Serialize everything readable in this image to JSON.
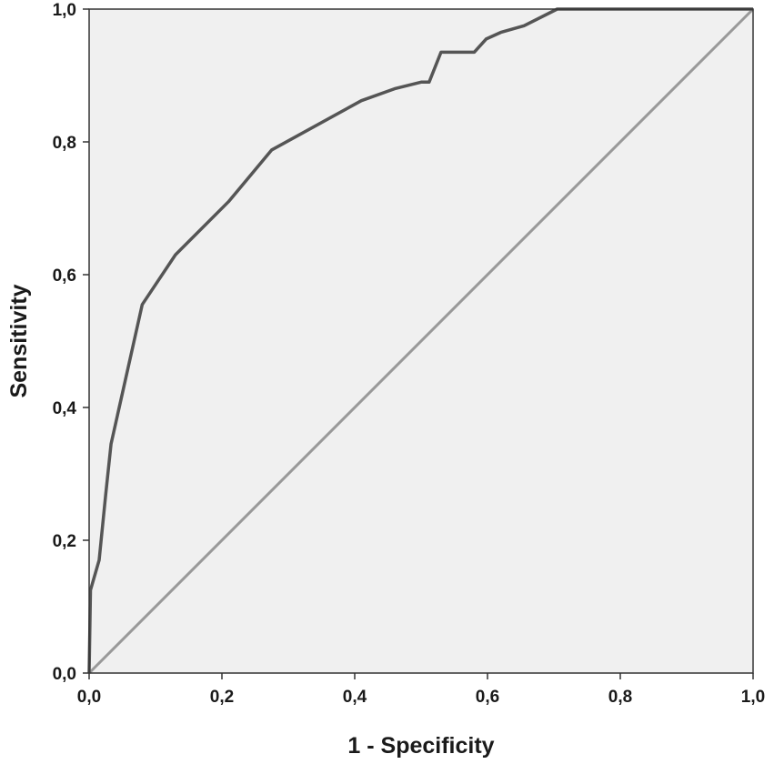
{
  "chart_data": {
    "type": "line",
    "title": "",
    "xlabel": "1 - Specificity",
    "ylabel": "Sensitivity",
    "xlim": [
      0,
      1
    ],
    "ylim": [
      0,
      1
    ],
    "xticks": [
      "0,0",
      "0,2",
      "0,4",
      "0,6",
      "0,8",
      "1,0"
    ],
    "yticks": [
      "0,0",
      "0,2",
      "0,4",
      "0,6",
      "0,8",
      "1,0"
    ],
    "grid": false,
    "colors": {
      "plot_background": "#f0f0f0",
      "curve": "#555555",
      "reference_line": "#999999",
      "axis": "#333333"
    },
    "series": [
      {
        "x": [
          0,
          0.002,
          0.015,
          0.025,
          0.033,
          0.08,
          0.13,
          0.21,
          0.275,
          0.41,
          0.46,
          0.5,
          0.512,
          0.53,
          0.58,
          0.598,
          0.62,
          0.655,
          0.705,
          1.0
        ],
        "y": [
          0,
          0.125,
          0.17,
          0.27,
          0.345,
          0.555,
          0.63,
          0.71,
          0.788,
          0.862,
          0.88,
          0.89,
          0.89,
          0.935,
          0.935,
          0.955,
          0.965,
          0.975,
          1.0,
          1.0
        ]
      },
      {
        "x": [
          0,
          1
        ],
        "y": [
          0,
          1
        ]
      }
    ]
  }
}
